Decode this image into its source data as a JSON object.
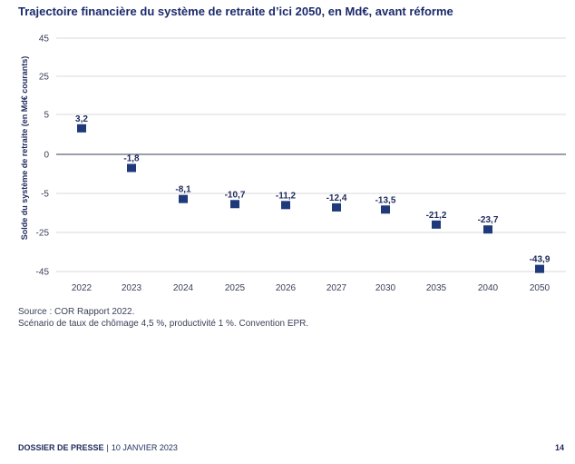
{
  "title": "Trajectoire financière du système de retraite d’ici 2050, en Md€, avant réforme",
  "chart_data": {
    "type": "scatter",
    "ylabel": "Solde du système de retraite (en Md€ courants)",
    "y_ticks": [
      "45",
      "25",
      "5",
      "0",
      "-5",
      "-25",
      "-45"
    ],
    "categories": [
      "2022",
      "2023",
      "2024",
      "2025",
      "2026",
      "2027",
      "2030",
      "2035",
      "2040",
      "2050"
    ],
    "values": [
      3.2,
      -1.8,
      -8.1,
      -10.7,
      -11.2,
      -12.4,
      -13.5,
      -21.2,
      -23.7,
      -43.9
    ],
    "value_labels": [
      "3,2",
      "-1,8",
      "-8,1",
      "-10,7",
      "-11,2",
      "-12,4",
      "-13,5",
      "-21,2",
      "-23,7",
      "-43,9"
    ],
    "grid": true,
    "marker_color": "#1f3a7a",
    "gridline_color": "#d9d9d9"
  },
  "source": {
    "line1": "Source : COR Rapport 2022.",
    "line2": "Scénario de taux de chômage 4,5 %, productivité 1 %. Convention EPR."
  },
  "footer": {
    "title": "DOSSIER DE PRESSE",
    "separator": "|",
    "date": "10 JANVIER 2023",
    "page": "14"
  }
}
